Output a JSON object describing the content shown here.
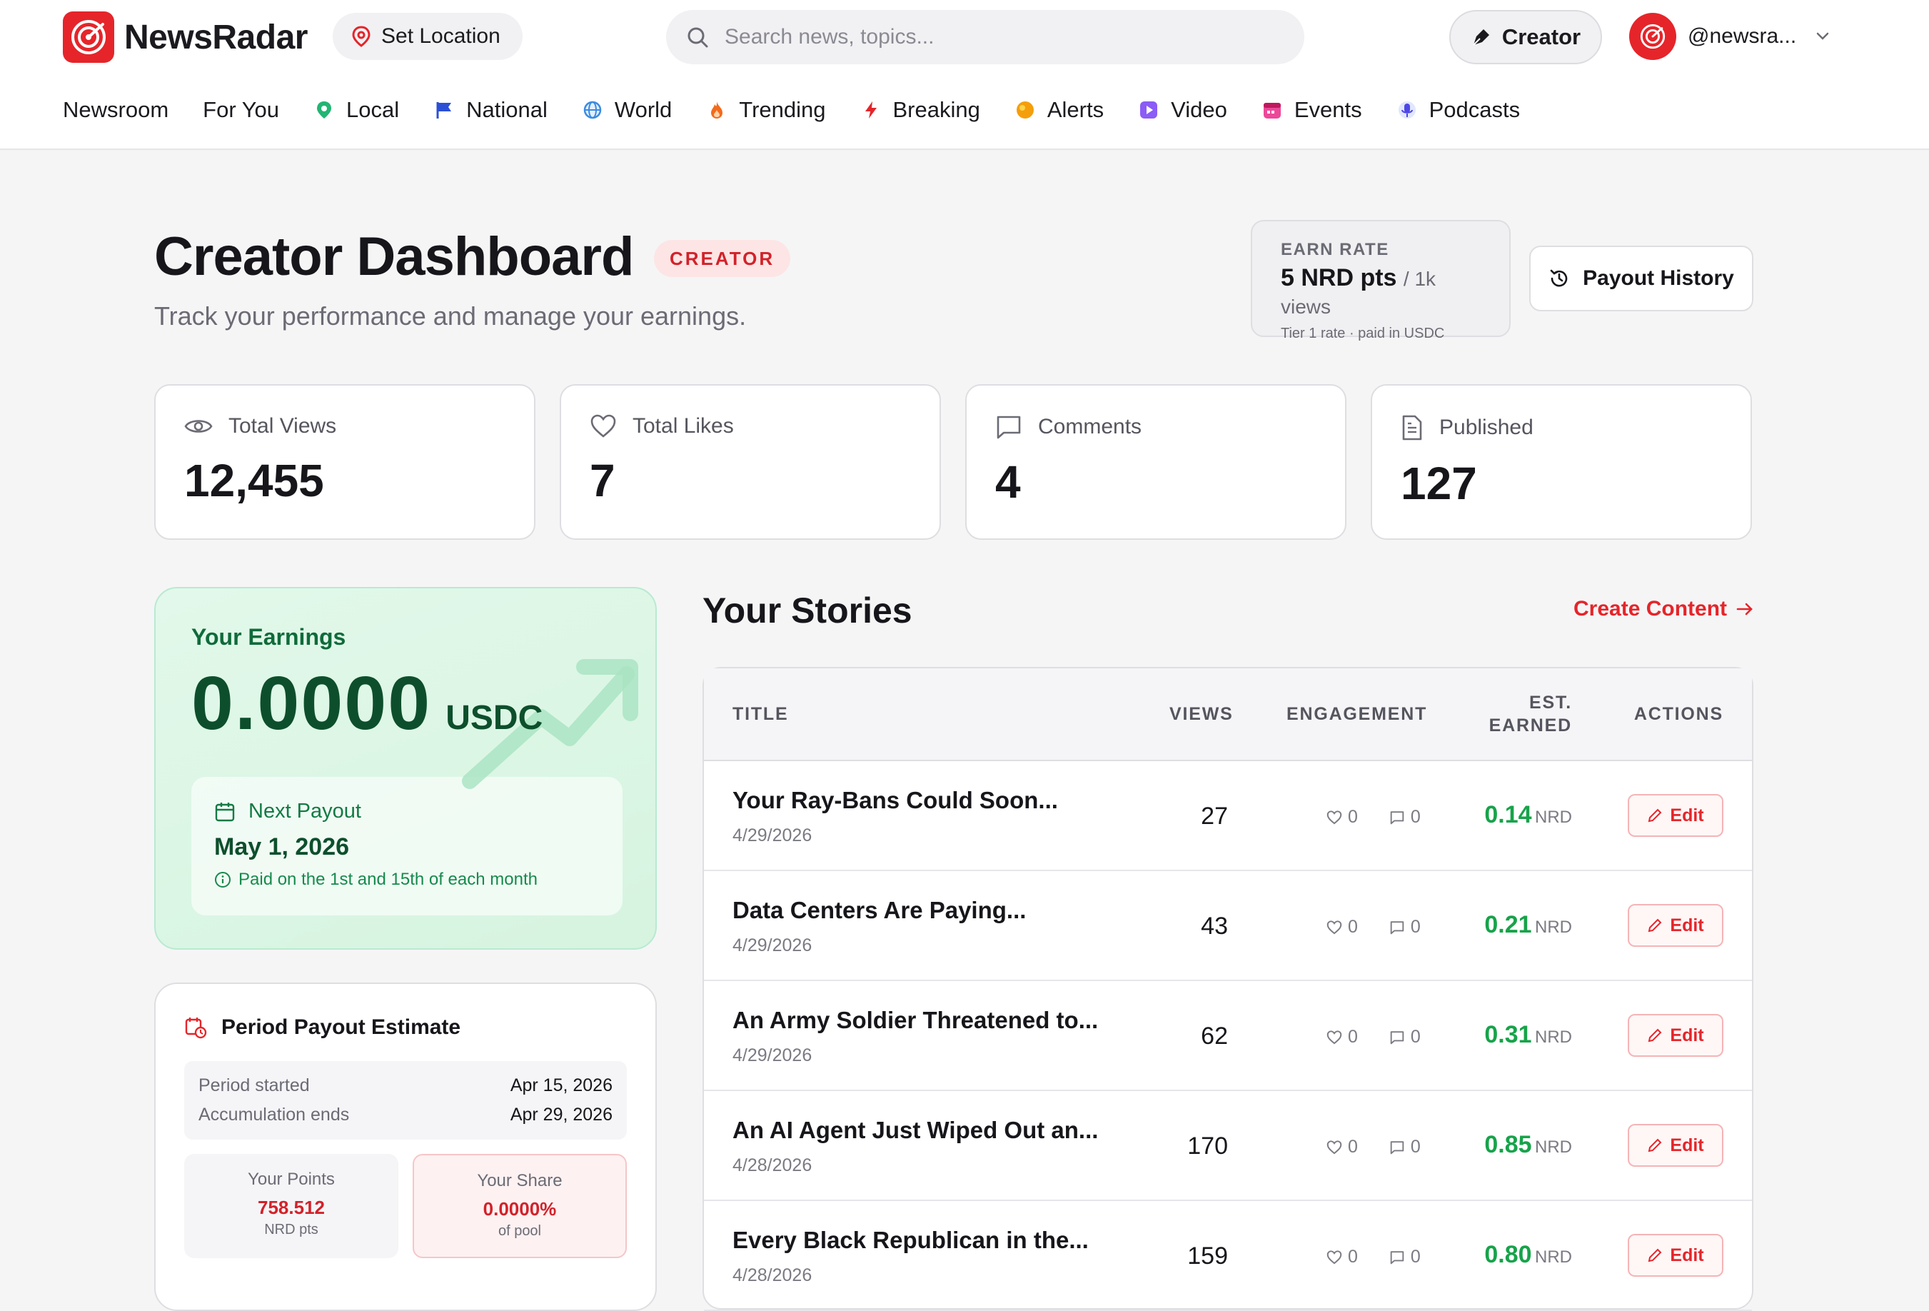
{
  "brand": {
    "name": "NewsRadar",
    "accent": "#e5252a"
  },
  "header": {
    "set_location": "Set Location",
    "search_placeholder": "Search news, topics...",
    "creator_label": "Creator",
    "username": "@newsra..."
  },
  "nav": [
    {
      "label": "Newsroom",
      "icon": ""
    },
    {
      "label": "For You",
      "icon": ""
    },
    {
      "label": "Local",
      "icon": "map-pin-icon"
    },
    {
      "label": "National",
      "icon": "flag-icon"
    },
    {
      "label": "World",
      "icon": "globe-icon"
    },
    {
      "label": "Trending",
      "icon": "flame-icon"
    },
    {
      "label": "Breaking",
      "icon": "lightning-icon"
    },
    {
      "label": "Alerts",
      "icon": "alert-icon"
    },
    {
      "label": "Video",
      "icon": "play-icon"
    },
    {
      "label": "Events",
      "icon": "calendar-icon"
    },
    {
      "label": "Podcasts",
      "icon": "mic-icon"
    }
  ],
  "page": {
    "title": "Creator Dashboard",
    "badge": "CREATOR",
    "subtitle": "Track your performance and manage your earnings."
  },
  "earn_rate": {
    "label": "EARN RATE",
    "value": "5 NRD pts",
    "unit": "/ 1k views",
    "note": "Tier 1 rate · paid in USDC"
  },
  "payout_history_label": "Payout History",
  "stats": [
    {
      "label": "Total Views",
      "value": "12,455",
      "icon": "eye-icon"
    },
    {
      "label": "Total Likes",
      "value": "7",
      "icon": "heart-icon"
    },
    {
      "label": "Comments",
      "value": "4",
      "icon": "comment-icon"
    },
    {
      "label": "Published",
      "value": "127",
      "icon": "document-icon"
    }
  ],
  "earnings": {
    "title": "Your Earnings",
    "amount": "0.0000",
    "currency": "USDC",
    "next_payout_label": "Next Payout",
    "next_payout_date": "May 1, 2026",
    "next_payout_note": "Paid on the 1st and 15th of each month"
  },
  "period": {
    "title": "Period Payout Estimate",
    "started_label": "Period started",
    "started_value": "Apr 15, 2026",
    "ends_label": "Accumulation ends",
    "ends_value": "Apr 29, 2026",
    "points_label": "Your Points",
    "points_value": "758.512",
    "points_unit": "NRD pts",
    "share_label": "Your Share",
    "share_value": "0.0000%",
    "share_unit": "of pool"
  },
  "stories": {
    "title": "Your Stories",
    "create_label": "Create Content",
    "columns": {
      "title": "TITLE",
      "views": "VIEWS",
      "engagement": "ENGAGEMENT",
      "earned_1": "EST.",
      "earned_2": "EARNED",
      "actions": "ACTIONS"
    },
    "edit_label": "Edit",
    "unit": "NRD",
    "rows": [
      {
        "title": "Your Ray-Bans Could Soon...",
        "date": "4/29/2026",
        "views": "27",
        "likes": "0",
        "comments": "0",
        "earned": "0.14"
      },
      {
        "title": "Data Centers Are Paying...",
        "date": "4/29/2026",
        "views": "43",
        "likes": "0",
        "comments": "0",
        "earned": "0.21"
      },
      {
        "title": "An Army Soldier Threatened to...",
        "date": "4/29/2026",
        "views": "62",
        "likes": "0",
        "comments": "0",
        "earned": "0.31"
      },
      {
        "title": "An AI Agent Just Wiped Out an...",
        "date": "4/28/2026",
        "views": "170",
        "likes": "0",
        "comments": "0",
        "earned": "0.85"
      },
      {
        "title": "Every Black Republican in the...",
        "date": "4/28/2026",
        "views": "159",
        "likes": "0",
        "comments": "0",
        "earned": "0.80"
      }
    ]
  }
}
